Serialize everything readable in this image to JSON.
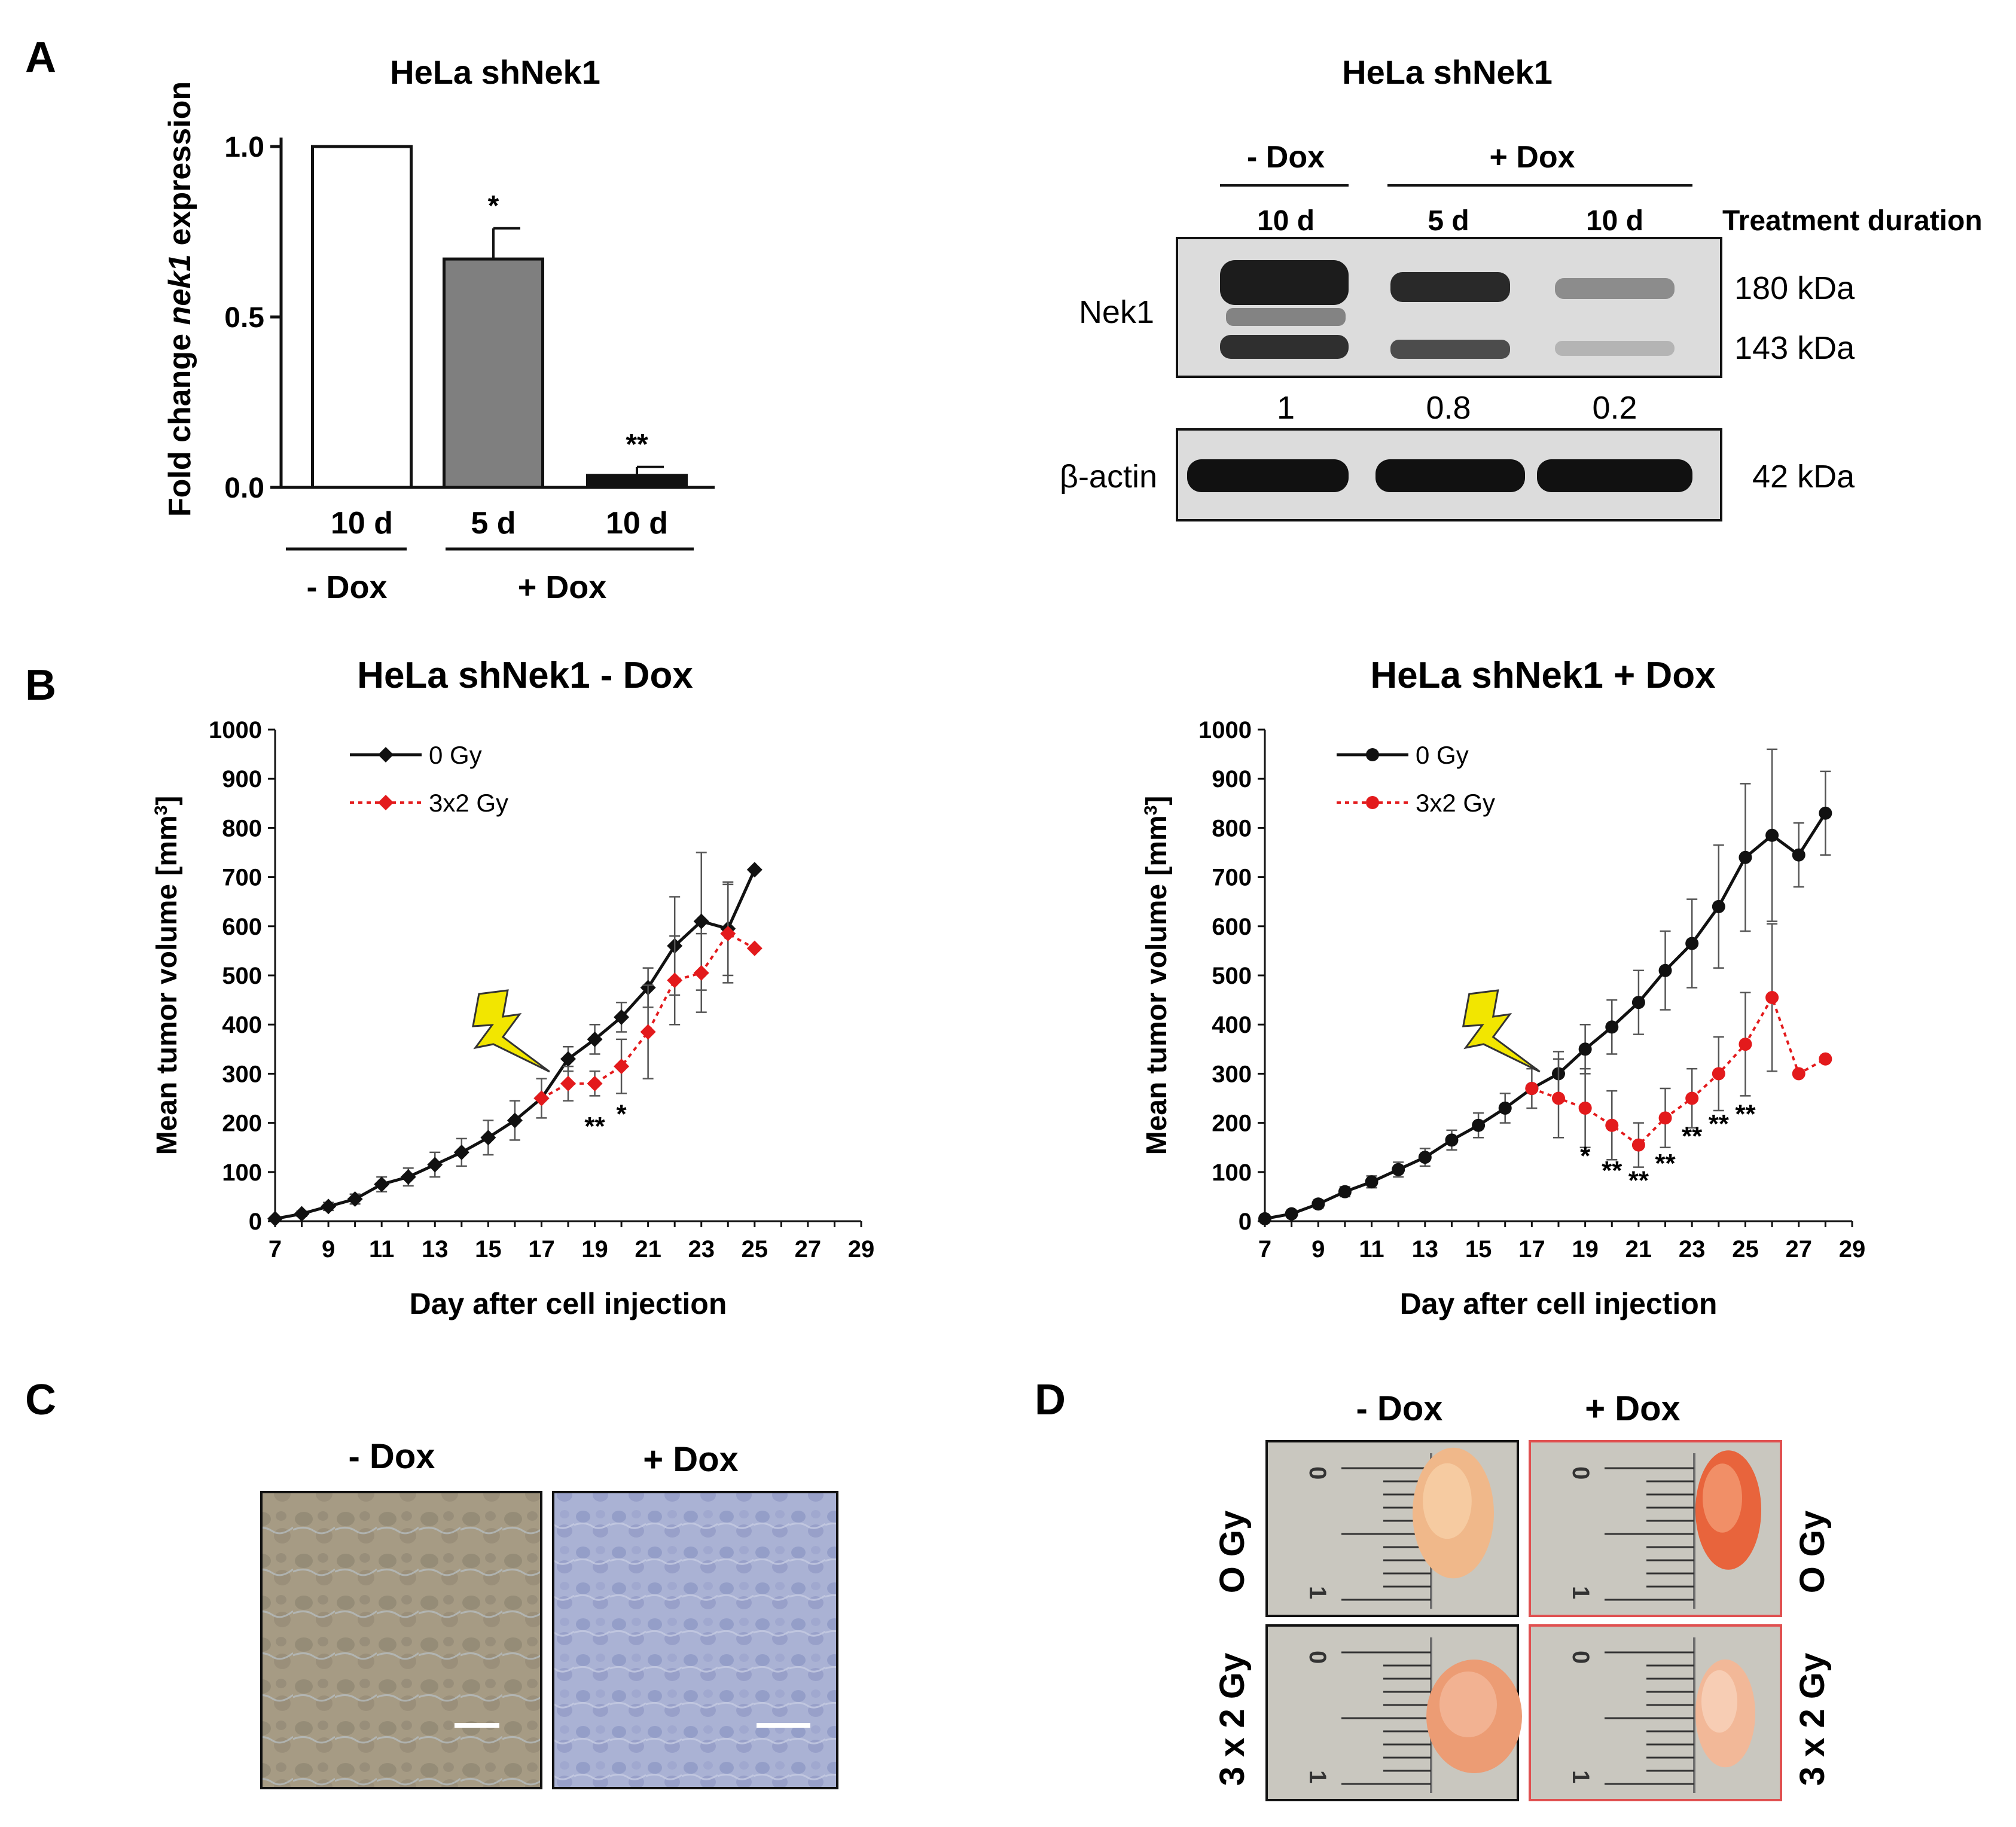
{
  "panel_labels": {
    "a": "A",
    "b": "B",
    "c": "C",
    "d": "D"
  },
  "colors": {
    "black": "#111111",
    "red": "#e31a1c",
    "gray_bar": "#7f7f7f",
    "bolt": "#f2e600",
    "pink_border": "#e05050",
    "blot_bg": "#dcdcdc"
  },
  "chart_data": [
    {
      "id": "A_bar",
      "type": "bar",
      "title": "HeLa shNek1",
      "ylabel_prefix": "Fold change ",
      "ylabel_italic": "nek1",
      "ylabel_suffix": " expression",
      "ylim": [
        0,
        1.0
      ],
      "yticks": [
        "0.0",
        "0.5",
        "1.0"
      ],
      "categories": [
        "10 d",
        "5 d",
        "10 d"
      ],
      "values": [
        1.0,
        0.67,
        0.035
      ],
      "errors": [
        0,
        0.09,
        0.025
      ],
      "bar_colors": [
        "#ffffff",
        "#7f7f7f",
        "#111111"
      ],
      "significance": [
        "",
        "*",
        "**"
      ],
      "groups": [
        {
          "label": "- Dox",
          "span": [
            0,
            0
          ]
        },
        {
          "label": "+ Dox",
          "span": [
            1,
            2
          ]
        }
      ]
    },
    {
      "id": "B_minus_dox",
      "type": "line",
      "title": "HeLa shNek1 - Dox",
      "xlabel": "Day after cell injection",
      "ylabel_prefix": "Mean tumor volume [mm",
      "ylabel_sup": "3",
      "ylabel_suffix": "]",
      "xlim": [
        7,
        29
      ],
      "ylim": [
        0,
        1000
      ],
      "xticks": [
        7,
        9,
        11,
        13,
        15,
        17,
        19,
        21,
        23,
        25,
        27,
        29
      ],
      "yticks": [
        0,
        100,
        200,
        300,
        400,
        500,
        600,
        700,
        800,
        900,
        1000
      ],
      "marker": "diamond",
      "series": [
        {
          "name": "0 Gy",
          "color": "#111111",
          "dash": false,
          "x": [
            7,
            8,
            9,
            10,
            11,
            12,
            13,
            14,
            15,
            16,
            17,
            18,
            19,
            20,
            21,
            22,
            23,
            24,
            25
          ],
          "y": [
            5,
            15,
            30,
            45,
            75,
            90,
            115,
            140,
            170,
            205,
            250,
            330,
            370,
            415,
            475,
            560,
            610,
            595,
            715
          ],
          "err": [
            3,
            5,
            8,
            10,
            15,
            18,
            25,
            28,
            35,
            40,
            40,
            25,
            30,
            30,
            40,
            100,
            140,
            95,
            0
          ]
        },
        {
          "name": "3x2 Gy",
          "color": "#e31a1c",
          "dash": true,
          "x": [
            17,
            18,
            19,
            20,
            21,
            22,
            23,
            24,
            25
          ],
          "y": [
            250,
            280,
            280,
            315,
            385,
            490,
            505,
            585,
            555
          ],
          "err": [
            0,
            35,
            25,
            55,
            95,
            90,
            80,
            100,
            0
          ]
        }
      ],
      "annotations": [
        {
          "text": "**",
          "x": 19,
          "y": 175
        },
        {
          "text": "*",
          "x": 20,
          "y": 200
        }
      ],
      "bolt_at": {
        "x": 16,
        "y": 365
      }
    },
    {
      "id": "B_plus_dox",
      "type": "line",
      "title": "HeLa shNek1 + Dox",
      "xlabel": "Day after cell injection",
      "ylabel_prefix": "Mean tumor volume [mm",
      "ylabel_sup": "3",
      "ylabel_suffix": "]",
      "xlim": [
        7,
        29
      ],
      "ylim": [
        0,
        1000
      ],
      "xticks": [
        7,
        9,
        11,
        13,
        15,
        17,
        19,
        21,
        23,
        25,
        27,
        29
      ],
      "yticks": [
        0,
        100,
        200,
        300,
        400,
        500,
        600,
        700,
        800,
        900,
        1000
      ],
      "marker": "circle",
      "series": [
        {
          "name": "0 Gy",
          "color": "#111111",
          "dash": false,
          "x": [
            7,
            8,
            9,
            10,
            11,
            12,
            13,
            14,
            15,
            16,
            17,
            18,
            19,
            20,
            21,
            22,
            23,
            24,
            25,
            26,
            27,
            28
          ],
          "y": [
            5,
            15,
            35,
            60,
            80,
            105,
            130,
            165,
            195,
            230,
            270,
            300,
            350,
            395,
            445,
            510,
            565,
            640,
            740,
            785,
            745,
            830
          ],
          "err": [
            3,
            4,
            8,
            10,
            12,
            15,
            18,
            20,
            25,
            30,
            40,
            45,
            50,
            55,
            65,
            80,
            90,
            125,
            150,
            175,
            65,
            85
          ]
        },
        {
          "name": "3x2 Gy",
          "color": "#e31a1c",
          "dash": true,
          "x": [
            17,
            18,
            19,
            20,
            21,
            22,
            23,
            24,
            25,
            26,
            27,
            28
          ],
          "y": [
            270,
            250,
            230,
            195,
            155,
            210,
            250,
            300,
            360,
            455,
            300,
            330
          ],
          "err": [
            0,
            80,
            80,
            70,
            45,
            60,
            60,
            75,
            105,
            150,
            0,
            0
          ]
        }
      ],
      "annotations": [
        {
          "text": "*",
          "x": 19,
          "y": 115
        },
        {
          "text": "**",
          "x": 20,
          "y": 85
        },
        {
          "text": "**",
          "x": 21,
          "y": 65
        },
        {
          "text": "**",
          "x": 22,
          "y": 100
        },
        {
          "text": "**",
          "x": 23,
          "y": 155
        },
        {
          "text": "**",
          "x": 24,
          "y": 180
        },
        {
          "text": "**",
          "x": 25,
          "y": 200
        }
      ],
      "bolt_at": {
        "x": 16,
        "y": 365
      }
    }
  ],
  "blot": {
    "title": "HeLa shNek1",
    "group_minus": "- Dox",
    "group_plus": "+ Dox",
    "lanes": [
      "10 d",
      "5 d",
      "10 d"
    ],
    "treatment_label": "Treatment duration",
    "nek1_label": "Nek1",
    "kda_180": "180 kDa",
    "kda_143": "143 kDa",
    "quant": [
      "1",
      "0.8",
      "0.2"
    ],
    "actin_label": "β-actin",
    "kda_42": "42 kDa"
  },
  "panel_c": {
    "minus_label": "- Dox",
    "plus_label": "+ Dox"
  },
  "panel_d": {
    "minus_label": "- Dox",
    "plus_label": "+ Dox",
    "row1_label": "O Gy",
    "row2_label": "3 x 2 Gy",
    "ruler_zero": "0",
    "ruler_one": "1"
  }
}
